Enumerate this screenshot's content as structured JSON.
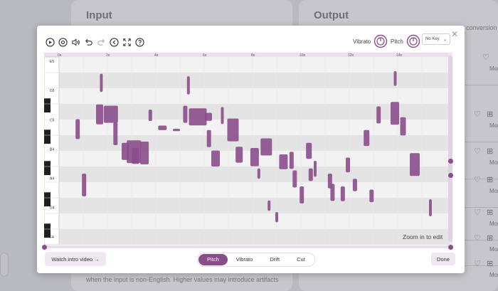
{
  "background": {
    "input_title": "Input",
    "output_title": "Output",
    "conversion_hint": "conversion",
    "footer_note": "when the input is non-English. Higher values may introduce artifacts",
    "rows_more": [
      "More",
      "More",
      "More",
      "More",
      "More",
      "More",
      "More"
    ]
  },
  "toolbar": {
    "icons": [
      "play-icon",
      "record-icon",
      "volume-icon",
      "undo-icon",
      "redo-icon",
      "reset-icon",
      "fullscreen-icon",
      "help-icon"
    ]
  },
  "controls": {
    "vibrato_label": "Vibrato",
    "pitch_label": "Pitch",
    "key_value": "No Key"
  },
  "timeline": {
    "ticks": [
      "0s",
      "2s",
      "4s",
      "6s",
      "8s",
      "10s",
      "12s",
      "14s"
    ]
  },
  "piano": {
    "octave_labels": [
      "E5",
      "D5",
      "C5",
      "B4",
      "A4",
      "G4",
      "F4"
    ]
  },
  "editor": {
    "zoom_hint": "Zoom in to edit",
    "note_color": "#8a4d8c"
  },
  "footer": {
    "intro_button": "Watch intro video →",
    "tabs": [
      "Pitch",
      "Vibrato",
      "Drift",
      "Cut"
    ],
    "active_tab": "Pitch",
    "done_button": "Done"
  },
  "colors": {
    "accent": "#8a4d8c",
    "accent_light": "#efe8f1"
  }
}
